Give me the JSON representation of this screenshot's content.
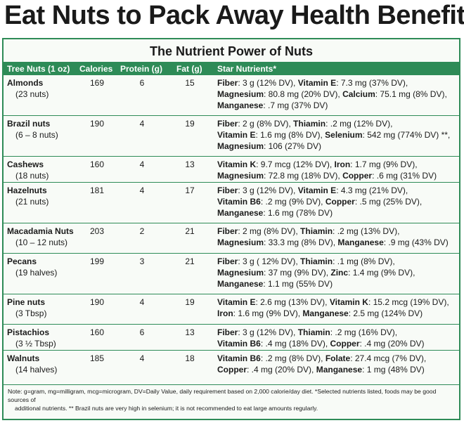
{
  "headline": "Eat Nuts to Pack Away Health Benefits",
  "subtitle": "The Nutrient Power of Nuts",
  "columns": {
    "nut": "Tree Nuts (1 oz)",
    "calories": "Calories",
    "protein": "Protein (g)",
    "fat": "Fat (g)",
    "nutrients": "Star Nutrients*"
  },
  "rows": [
    {
      "name": "Almonds",
      "qty": "(23 nuts)",
      "calories": "169",
      "protein": "6",
      "fat": "15",
      "lines": [
        [
          [
            "Fiber",
            ": 3 g (12% DV), "
          ],
          [
            "Vitamin E",
            ": 7.3 mg (37% DV),"
          ]
        ],
        [
          [
            "Magnesium",
            ": 80.8 mg (20% DV), "
          ],
          [
            "Calcium",
            ": 75.1 mg (8% DV),"
          ]
        ],
        [
          [
            "Manganese",
            ": .7 mg (37% DV)"
          ]
        ]
      ]
    },
    {
      "name": "Brazil nuts",
      "qty": "(6 – 8 nuts)",
      "calories": "190",
      "protein": "4",
      "fat": "19",
      "lines": [
        [
          [
            "Fiber",
            ": 2 g (8% DV), "
          ],
          [
            "Thiamin",
            ": .2 mg (12% DV),"
          ]
        ],
        [
          [
            "Vitamin E",
            ": 1.6 mg (8% DV), "
          ],
          [
            "Selenium",
            ": 542 mg (774% DV) **,"
          ]
        ],
        [
          [
            "Magnesium",
            ": 106 (27% DV)"
          ]
        ]
      ]
    },
    {
      "name": "Cashews",
      "qty": "(18 nuts)",
      "calories": "160",
      "protein": "4",
      "fat": "13",
      "lines": [
        [
          [
            "Vitamin K",
            ": 9.7 mcg (12% DV), "
          ],
          [
            "Iron",
            ": 1.7 mg (9% DV),"
          ]
        ],
        [
          [
            "Magnesium",
            ": 72.8 mg (18% DV), "
          ],
          [
            "Copper",
            ": .6 mg (31% DV)"
          ]
        ]
      ]
    },
    {
      "name": "Hazelnuts",
      "qty": "(21 nuts)",
      "calories": "181",
      "protein": "4",
      "fat": "17",
      "lines": [
        [
          [
            "Fiber",
            ": 3 g (12% DV), "
          ],
          [
            "Vitamin E",
            ": 4.3 mg (21% DV),"
          ]
        ],
        [
          [
            "Vitamin B6",
            ": .2 mg (9% DV), "
          ],
          [
            "Copper",
            ": .5 mg (25% DV),"
          ]
        ],
        [
          [
            "Manganese",
            ": 1.6 mg (78% DV)"
          ]
        ]
      ]
    },
    {
      "name": "Macadamia Nuts",
      "qty": "(10 – 12 nuts)",
      "calories": "203",
      "protein": "2",
      "fat": "21",
      "lines": [
        [
          [
            "Fiber",
            ": 2 mg (8% DV), "
          ],
          [
            "Thiamin",
            ": .2 mg (13% DV),"
          ]
        ],
        [
          [
            "Magnesium",
            ": 33.3 mg (8% DV), "
          ],
          [
            "Manganese",
            ": .9 mg (43% DV)"
          ]
        ]
      ]
    },
    {
      "name": "Pecans",
      "qty": "(19 halves)",
      "calories": "199",
      "protein": "3",
      "fat": "21",
      "lines": [
        [
          [
            "Fiber",
            ": 3 g ( 12% DV), "
          ],
          [
            "Thiamin",
            ": .1 mg (8% DV),"
          ]
        ],
        [
          [
            "Magnesium",
            ": 37 mg (9% DV), "
          ],
          [
            "Zinc",
            ": 1.4 mg (9% DV),"
          ]
        ],
        [
          [
            "Manganese",
            ": 1.1 mg (55% DV)"
          ]
        ]
      ]
    },
    {
      "name": "Pine nuts",
      "qty": "(3 Tbsp)",
      "calories": "190",
      "protein": "4",
      "fat": "19",
      "lines": [
        [
          [
            "Vitamin E",
            ": 2.6 mg (13% DV), "
          ],
          [
            "Vitamin K",
            ": 15.2 mcg (19% DV),"
          ]
        ],
        [
          [
            "Iron",
            ": 1.6 mg (9% DV), "
          ],
          [
            "Manganese",
            ": 2.5 mg (124% DV)"
          ]
        ]
      ]
    },
    {
      "name": "Pistachios",
      "qty": "(3 ½ Tbsp)",
      "calories": "160",
      "protein": "6",
      "fat": "13",
      "lines": [
        [
          [
            "Fiber",
            ": 3 g (12% DV), "
          ],
          [
            "Thiamin",
            ": .2 mg (16% DV),"
          ]
        ],
        [
          [
            "Vitamin B6",
            ": .4 mg (18% DV), "
          ],
          [
            "Copper",
            ": .4 mg (20% DV)"
          ]
        ]
      ]
    },
    {
      "name": "Walnuts",
      "qty": "(14 halves)",
      "calories": "185",
      "protein": "4",
      "fat": "18",
      "lines": [
        [
          [
            "Vitamin B6",
            ": .2 mg (8% DV), "
          ],
          [
            "Folate",
            ": 27.4 mcg (7% DV),"
          ]
        ],
        [
          [
            "Copper",
            ": .4 mg (20% DV), "
          ],
          [
            "Manganese",
            ": 1 mg (48% DV)"
          ]
        ]
      ]
    }
  ],
  "note_line1": "Note: g=gram, mg=milligram, mcg=microgram, DV=Daily Value, daily requirement based on 2,000 calorie/day diet. *Selected nutrients listed, foods may be good sources of",
  "note_line2": "additional nutrients. ** Brazil nuts are very high in selenium; it is not recommended to eat large amounts regularly.",
  "colors": {
    "accent": "#2e8b57",
    "text": "#1a1a1a",
    "background": "#f8fbf7"
  }
}
